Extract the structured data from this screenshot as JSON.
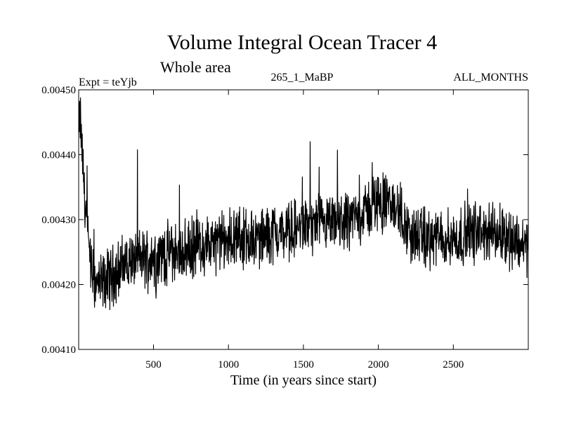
{
  "chart_data": {
    "type": "line",
    "title": "Volume Integral Ocean Tracer 4",
    "subtitle": "Whole area",
    "experiment_label": "Expt = teYjb",
    "run_label": "265_1_MaBP",
    "period_label": "ALL_MONTHS",
    "xlabel": "Time (in years since start)",
    "ylabel": "",
    "xlim": [
      1,
      3000
    ],
    "ylim": [
      0.0041,
      0.0045
    ],
    "x_ticks": [
      500,
      1000,
      1500,
      2000,
      2500
    ],
    "x_tick_labels": [
      "500",
      "1000",
      "1500",
      "2000",
      "2500"
    ],
    "y_ticks": [
      0.0041,
      0.0042,
      0.0043,
      0.0044,
      0.0045
    ],
    "y_tick_labels": [
      "0.00410",
      "0.00420",
      "0.00430",
      "0.00440",
      "0.00450"
    ],
    "grid": false,
    "series": [
      {
        "name": "Volume Integral Ocean Tracer 4",
        "color": "#000000",
        "x": [
          1,
          10,
          20,
          30,
          40,
          50,
          60,
          70,
          80,
          100,
          120,
          150,
          200,
          250,
          300,
          400,
          500,
          600,
          700,
          800,
          900,
          1000,
          1100,
          1200,
          1300,
          1400,
          1500,
          1600,
          1700,
          1800,
          1900,
          2000,
          2100,
          2150,
          2200,
          2300,
          2400,
          2500,
          2600,
          2700,
          2800,
          2900,
          3000
        ],
        "values": [
          0.00443,
          0.00446,
          0.00442,
          0.00438,
          0.00434,
          0.00431,
          0.00428,
          0.00425,
          0.00423,
          0.00421,
          0.0042,
          0.0042,
          0.00421,
          0.00422,
          0.00423,
          0.00424,
          0.00424,
          0.00425,
          0.00425,
          0.00426,
          0.00426,
          0.00427,
          0.00427,
          0.00427,
          0.00428,
          0.00428,
          0.00429,
          0.00429,
          0.00429,
          0.0043,
          0.00431,
          0.00433,
          0.00432,
          0.00431,
          0.00428,
          0.00427,
          0.00427,
          0.00427,
          0.00428,
          0.00428,
          0.00428,
          0.00427,
          0.00426
        ]
      }
    ]
  }
}
